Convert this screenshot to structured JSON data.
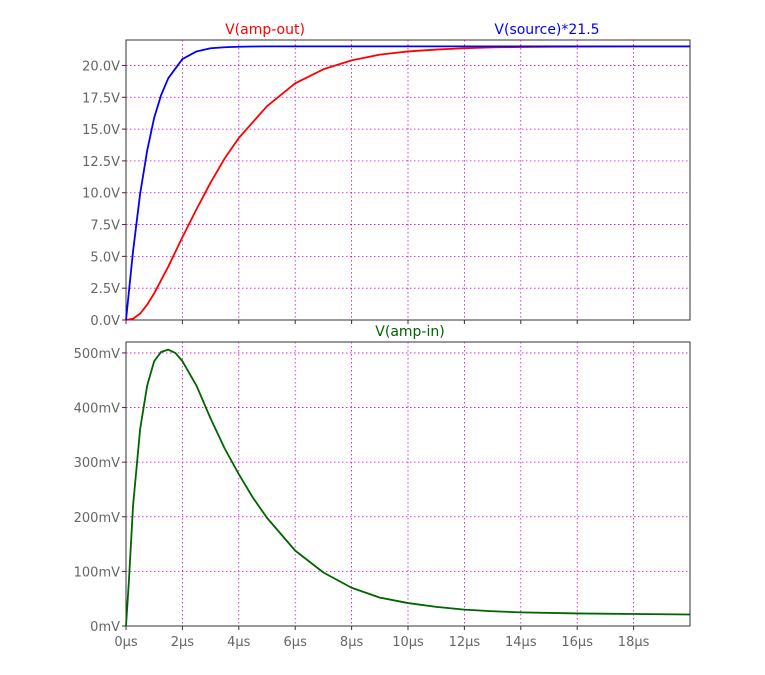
{
  "chart_data": [
    {
      "type": "line",
      "title": "",
      "xlabel": "",
      "ylabel": "",
      "xlim": [
        0,
        20
      ],
      "ylim": [
        0,
        22
      ],
      "x_ticks": [
        "0µs",
        "2µs",
        "4µs",
        "6µs",
        "8µs",
        "10µs",
        "12µs",
        "14µs",
        "16µs",
        "18µs"
      ],
      "y_ticks": [
        "0.0V",
        "2.5V",
        "5.0V",
        "7.5V",
        "10.0V",
        "12.5V",
        "15.0V",
        "17.5V",
        "20.0V"
      ],
      "grid": true,
      "series": [
        {
          "name": "V(amp-out)",
          "color": "#ff0000",
          "x": [
            0,
            0.25,
            0.5,
            0.75,
            1,
            1.5,
            2,
            2.5,
            3,
            3.5,
            4,
            5,
            6,
            7,
            8,
            9,
            10,
            11,
            12,
            13,
            14,
            15,
            16,
            17,
            18,
            19,
            20
          ],
          "y": [
            0,
            0.1,
            0.5,
            1.2,
            2.1,
            4.2,
            6.5,
            8.7,
            10.8,
            12.7,
            14.3,
            16.8,
            18.6,
            19.7,
            20.4,
            20.85,
            21.1,
            21.25,
            21.35,
            21.42,
            21.45,
            21.47,
            21.48,
            21.49,
            21.5,
            21.5,
            21.5
          ]
        },
        {
          "name": "V(source)*21.5",
          "color": "#0000ff",
          "x": [
            0,
            0.25,
            0.5,
            0.75,
            1,
            1.25,
            1.5,
            2,
            2.5,
            3,
            3.5,
            4,
            4.5,
            5,
            6,
            7,
            8,
            10,
            12,
            14,
            16,
            18,
            20
          ],
          "y": [
            0,
            5.4,
            9.9,
            13.3,
            15.9,
            17.7,
            19.0,
            20.5,
            21.1,
            21.35,
            21.43,
            21.47,
            21.49,
            21.5,
            21.5,
            21.5,
            21.5,
            21.5,
            21.5,
            21.5,
            21.5,
            21.5,
            21.5
          ]
        }
      ]
    },
    {
      "type": "line",
      "title": "",
      "xlabel": "",
      "ylabel": "",
      "xlim": [
        0,
        20
      ],
      "ylim": [
        0,
        520
      ],
      "x_ticks": [
        "0µs",
        "2µs",
        "4µs",
        "6µs",
        "8µs",
        "10µs",
        "12µs",
        "14µs",
        "16µs",
        "18µs"
      ],
      "y_ticks": [
        "0mV",
        "100mV",
        "200mV",
        "300mV",
        "400mV",
        "500mV"
      ],
      "grid": true,
      "series": [
        {
          "name": "V(amp-in)",
          "color": "#006400",
          "x": [
            0,
            0.1,
            0.25,
            0.5,
            0.75,
            1,
            1.25,
            1.5,
            1.75,
            2,
            2.5,
            3,
            3.5,
            4,
            4.5,
            5,
            6,
            7,
            8,
            9,
            10,
            11,
            12,
            13,
            14,
            16,
            18,
            20
          ],
          "y": [
            0,
            80,
            220,
            360,
            440,
            485,
            502,
            506,
            500,
            485,
            440,
            380,
            325,
            278,
            235,
            198,
            138,
            98,
            70,
            52,
            42,
            35,
            30,
            27,
            25,
            23,
            22,
            21
          ]
        }
      ]
    }
  ]
}
